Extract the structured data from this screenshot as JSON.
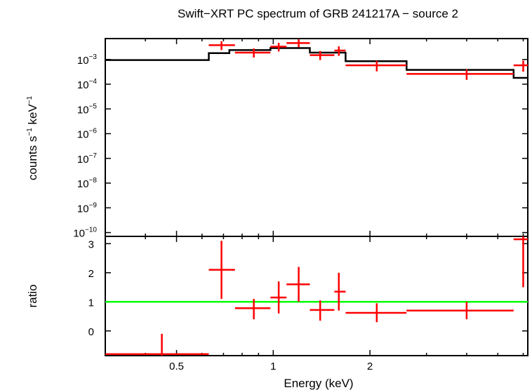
{
  "chart_data": {
    "title": "Swift−XRT PC spectrum of GRB 241217A − source 2",
    "type": "line",
    "xlabel": "Energy (keV)",
    "x_scale": "log",
    "xlim": [
      0.3,
      6.2
    ],
    "x_ticks": [
      {
        "value": 0.5,
        "label": "0.5"
      },
      {
        "value": 1,
        "label": "1"
      },
      {
        "value": 2,
        "label": "2"
      }
    ],
    "panels": [
      {
        "name": "spectrum",
        "ylabel_main": "counts s",
        "ylabel_sup1": "−1",
        "ylabel_mid": " keV",
        "ylabel_sup2": "−1",
        "y_scale": "log",
        "ylim": [
          7e-11,
          0.007
        ],
        "y_ticks": [
          {
            "value": 0.001,
            "base": "10",
            "exp": "−3"
          },
          {
            "value": 0.0001,
            "base": "10",
            "exp": "−4"
          },
          {
            "value": 1e-05,
            "base": "10",
            "exp": "−5"
          },
          {
            "value": 1e-06,
            "base": "10",
            "exp": "−6"
          },
          {
            "value": 1e-07,
            "base": "10",
            "exp": "−7"
          },
          {
            "value": 1e-08,
            "base": "10",
            "exp": "−8"
          },
          {
            "value": 1e-09,
            "base": "10",
            "exp": "−9"
          },
          {
            "value": 1e-10,
            "base": "10",
            "exp": "−10"
          }
        ],
        "model_steps": [
          {
            "x0": 0.3,
            "x1": 0.63,
            "y": 0.00095
          },
          {
            "x0": 0.63,
            "x1": 0.73,
            "y": 0.0018
          },
          {
            "x0": 0.73,
            "x1": 0.98,
            "y": 0.0024
          },
          {
            "x0": 0.98,
            "x1": 1.3,
            "y": 0.0029
          },
          {
            "x0": 1.3,
            "x1": 1.68,
            "y": 0.0019
          },
          {
            "x0": 1.68,
            "x1": 2.6,
            "y": 0.00085
          },
          {
            "x0": 2.6,
            "x1": 5.6,
            "y": 0.00038
          },
          {
            "x0": 5.6,
            "x1": 6.2,
            "y": 0.00018
          }
        ],
        "data_points": [
          {
            "x": 0.69,
            "xlo": 0.63,
            "xhi": 0.76,
            "y": 0.0038,
            "ylo": 0.0024,
            "yhi": 0.0055
          },
          {
            "x": 0.87,
            "xlo": 0.76,
            "xhi": 0.98,
            "y": 0.0019,
            "ylo": 0.0012,
            "yhi": 0.0028
          },
          {
            "x": 1.04,
            "xlo": 0.98,
            "xhi": 1.1,
            "y": 0.0033,
            "ylo": 0.0021,
            "yhi": 0.0047
          },
          {
            "x": 1.2,
            "xlo": 1.1,
            "xhi": 1.3,
            "y": 0.0046,
            "ylo": 0.0031,
            "yhi": 0.0065
          },
          {
            "x": 1.4,
            "xlo": 1.3,
            "xhi": 1.55,
            "y": 0.0015,
            "ylo": 0.00095,
            "yhi": 0.0022
          },
          {
            "x": 1.6,
            "xlo": 1.55,
            "xhi": 1.68,
            "y": 0.0023,
            "ylo": 0.0014,
            "yhi": 0.0034
          },
          {
            "x": 2.1,
            "xlo": 1.68,
            "xhi": 2.6,
            "y": 0.00058,
            "ylo": 0.00033,
            "yhi": 0.00088
          },
          {
            "x": 4.0,
            "xlo": 2.6,
            "xhi": 5.6,
            "y": 0.00026,
            "ylo": 0.00015,
            "yhi": 0.0004
          },
          {
            "x": 6.0,
            "xlo": 5.6,
            "xhi": 6.2,
            "y": 0.00058,
            "ylo": 0.00032,
            "yhi": 0.0009
          }
        ]
      },
      {
        "name": "ratio",
        "ylabel": "ratio",
        "y_scale": "linear",
        "ylim": [
          -0.85,
          3.25
        ],
        "y_ticks": [
          {
            "value": 0,
            "label": "0"
          },
          {
            "value": 1,
            "label": "1"
          },
          {
            "value": 2,
            "label": "2"
          },
          {
            "value": 3,
            "label": "3"
          }
        ],
        "reference_line": 1,
        "data_points": [
          {
            "x": 0.45,
            "xlo": 0.3,
            "xhi": 0.63,
            "y": -0.8,
            "ylo": -1.0,
            "yhi": -0.1
          },
          {
            "x": 0.69,
            "xlo": 0.63,
            "xhi": 0.76,
            "y": 2.1,
            "ylo": 1.1,
            "yhi": 3.1
          },
          {
            "x": 0.87,
            "xlo": 0.76,
            "xhi": 0.98,
            "y": 0.78,
            "ylo": 0.4,
            "yhi": 1.1
          },
          {
            "x": 1.04,
            "xlo": 0.98,
            "xhi": 1.1,
            "y": 1.15,
            "ylo": 0.6,
            "yhi": 1.7
          },
          {
            "x": 1.2,
            "xlo": 1.1,
            "xhi": 1.3,
            "y": 1.6,
            "ylo": 1.0,
            "yhi": 2.2
          },
          {
            "x": 1.4,
            "xlo": 1.3,
            "xhi": 1.55,
            "y": 0.72,
            "ylo": 0.35,
            "yhi": 1.05
          },
          {
            "x": 1.6,
            "xlo": 1.55,
            "xhi": 1.68,
            "y": 1.35,
            "ylo": 0.7,
            "yhi": 2.0
          },
          {
            "x": 2.1,
            "xlo": 1.68,
            "xhi": 2.6,
            "y": 0.62,
            "ylo": 0.3,
            "yhi": 0.95
          },
          {
            "x": 4.0,
            "xlo": 2.6,
            "xhi": 5.6,
            "y": 0.7,
            "ylo": 0.4,
            "yhi": 1.0
          },
          {
            "x": 6.0,
            "xlo": 5.6,
            "xhi": 6.2,
            "y": 3.15,
            "ylo": 1.5,
            "yhi": 3.4
          }
        ]
      }
    ],
    "colors": {
      "data": "#ff0000",
      "model": "#000000",
      "reference_line": "#00ff00"
    }
  }
}
